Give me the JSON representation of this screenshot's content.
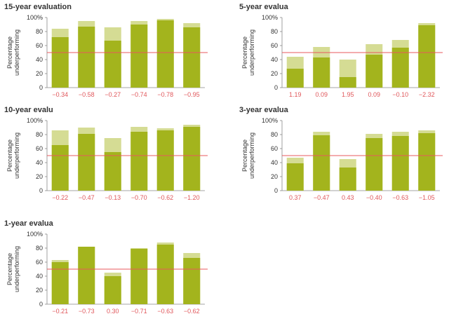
{
  "colors": {
    "bar_dark": "#a3b41d",
    "bar_light": "#d5dc94",
    "reference_line": "#e8585c",
    "x_label": "#e0575b",
    "axis": "#888888"
  },
  "chart_data": [
    {
      "type": "bar",
      "title": "15-year evaluation",
      "categories": [
        "-0.34",
        "-0.58",
        "-0.27",
        "-0.74",
        "-0.78",
        "-0.95"
      ],
      "series": [
        {
          "values": [
            72,
            87,
            67,
            90,
            96,
            86
          ]
        },
        {
          "values": [
            84,
            95,
            86,
            95,
            98,
            92
          ]
        }
      ],
      "ylabel": "Percentage underperforming",
      "yticks": [
        "0",
        "20",
        "40",
        "60",
        "80",
        "100%"
      ],
      "ylim": [
        0,
        100
      ],
      "reference_line": 50,
      "grid": false
    },
    {
      "type": "bar",
      "title": "5-year evalua",
      "categories": [
        "1.19",
        "0.09",
        "1.95",
        "0.09",
        "-0.10",
        "-2.32"
      ],
      "series": [
        {
          "values": [
            27,
            43,
            15,
            47,
            57,
            89
          ]
        },
        {
          "values": [
            44,
            58,
            40,
            62,
            68,
            92
          ]
        }
      ],
      "ylabel": "Percentage underperforming",
      "yticks": [
        "0",
        "20",
        "40",
        "60",
        "80",
        "100%"
      ],
      "ylim": [
        0,
        100
      ],
      "reference_line": 50,
      "grid": false
    },
    {
      "type": "bar",
      "title": "10-year evalu",
      "categories": [
        "-0.22",
        "-0.47",
        "-0.13",
        "-0.70",
        "-0.62",
        "-1.20"
      ],
      "series": [
        {
          "values": [
            65,
            81,
            55,
            84,
            86,
            91
          ]
        },
        {
          "values": [
            86,
            90,
            75,
            91,
            89,
            94
          ]
        }
      ],
      "ylabel": "Percentage underperforming",
      "yticks": [
        "0",
        "20",
        "40",
        "60",
        "80",
        "100%"
      ],
      "ylim": [
        0,
        100
      ],
      "reference_line": 50,
      "grid": false
    },
    {
      "type": "bar",
      "title": "3-year evalua",
      "categories": [
        "0.37",
        "-0.47",
        "0.43",
        "-0.40",
        "-0.63",
        "-1.05"
      ],
      "series": [
        {
          "values": [
            39,
            79,
            33,
            75,
            78,
            82
          ]
        },
        {
          "values": [
            47,
            84,
            45,
            81,
            84,
            86
          ]
        }
      ],
      "ylabel": "Percentage underperforming",
      "yticks": [
        "0",
        "20",
        "40",
        "60",
        "80",
        "100%"
      ],
      "ylim": [
        0,
        100
      ],
      "reference_line": 50,
      "grid": false
    },
    {
      "type": "bar",
      "title": "1-year evalua",
      "categories": [
        "-0.21",
        "-0.73",
        "0.30",
        "-0.71",
        "-0.63",
        "-0.62"
      ],
      "series": [
        {
          "values": [
            60,
            82,
            40,
            79,
            85,
            66
          ]
        },
        {
          "values": [
            63,
            82,
            45,
            80,
            88,
            73
          ]
        }
      ],
      "ylabel": "Percentage underperforming",
      "yticks": [
        "0",
        "20",
        "40",
        "60",
        "80",
        "100%"
      ],
      "ylim": [
        0,
        100
      ],
      "reference_line": 50,
      "grid": false
    }
  ]
}
